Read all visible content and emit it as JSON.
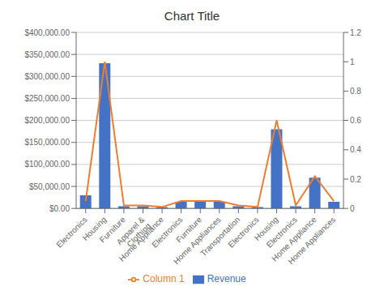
{
  "chart_data": {
    "type": "bar",
    "title": "Chart Title",
    "categories": [
      "Electronics",
      "Housing",
      "Furniture",
      "Apparel &\nClothing",
      "Home Appliance",
      "Electronics",
      "Furniture",
      "Home Appliances",
      "Transportation",
      "Electronics",
      "Housing",
      "Electronics",
      "Home Appliance",
      "Home Appliances"
    ],
    "series": [
      {
        "name": "Revenue",
        "type": "bar",
        "color": "#4472c4",
        "values": [
          30000,
          330000,
          5000,
          5000,
          3000,
          15000,
          15000,
          15000,
          5000,
          3000,
          180000,
          5000,
          70000,
          15000
        ]
      },
      {
        "name": "Column 1",
        "type": "line",
        "color": "#ed7d31",
        "axis": "y2",
        "values": [
          0.05,
          1.0,
          0.02,
          0.02,
          0.01,
          0.05,
          0.05,
          0.05,
          0.02,
          0.01,
          0.6,
          0.02,
          0.22,
          0.05
        ]
      }
    ],
    "ylim": [
      0,
      400000
    ],
    "yticks": [
      {
        "value": 0,
        "label": "$0.00"
      },
      {
        "value": 50000,
        "label": "$50,000.00"
      },
      {
        "value": 100000,
        "label": "$100,000.00"
      },
      {
        "value": 150000,
        "label": "$150,000.00"
      },
      {
        "value": 200000,
        "label": "$200,000.00"
      },
      {
        "value": 250000,
        "label": "$250,000.00"
      },
      {
        "value": 300000,
        "label": "$300,000.00"
      },
      {
        "value": 350000,
        "label": "$350,000.00"
      },
      {
        "value": 400000,
        "label": "$400,000.00"
      }
    ],
    "y2lim": [
      0,
      1.2
    ],
    "y2ticks": [
      0,
      0.2,
      0.4,
      0.6,
      0.8,
      1,
      1.2
    ],
    "grid": true,
    "legend": "bottom"
  }
}
